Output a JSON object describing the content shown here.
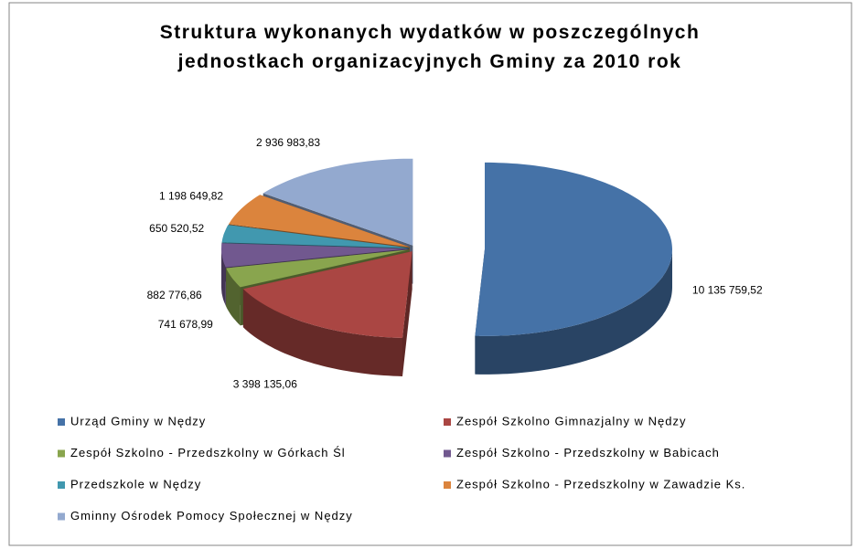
{
  "chart_data": {
    "type": "pie3d",
    "title": "Struktura wykonanych wydatków w poszczególnych jednostkach organizacyjnych Gminy za 2010 rok",
    "categories": [
      "Urząd Gminy w Nędzy",
      "Zespół Szkolno Gimnazjalny w Nędzy",
      "Zespół Szkolno - Przedszkolny w Górkach Śl",
      "Zespół Szkolno - Przedszkolny w Babicach",
      "Przedszkole w Nędzy",
      "Zespół Szkolno - Przedszkolny w Zawadzie Ks.",
      "Gminny Ośrodek Pomocy Społecznej w Nędzy"
    ],
    "values": [
      10135759.52,
      3398135.06,
      741678.99,
      882776.86,
      650520.52,
      1198649.82,
      2936983.83
    ],
    "value_labels": [
      "10 135 759,52",
      "3 398 135,06",
      "741 678,99",
      "882 776,86",
      "650 520,52",
      "1 198 649,82",
      "2 936 983,83"
    ],
    "colors": [
      "#4572a7",
      "#aa4643",
      "#89a54e",
      "#71588f",
      "#4198af",
      "#db843d",
      "#93a9cf"
    ],
    "legend": "bottom"
  }
}
